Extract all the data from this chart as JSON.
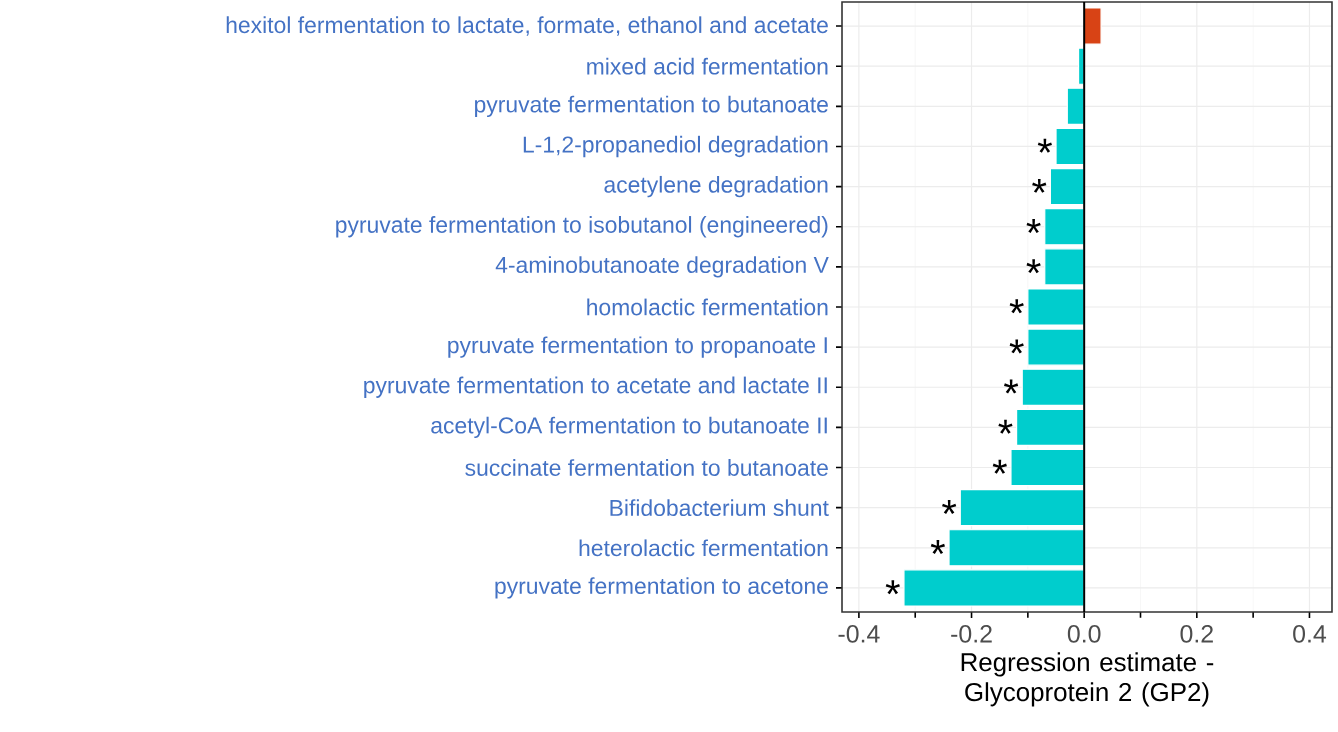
{
  "chart_data": {
    "type": "bar",
    "orientation": "horizontal",
    "xlabel": "Regression estimate - Glycoprotein 2 (GP2)",
    "categories": [
      "hexitol fermentation to lactate, formate, ethanol and acetate",
      "mixed acid fermentation",
      "pyruvate fermentation to butanoate",
      "L-1,2-propanediol degradation",
      "acetylene degradation",
      "pyruvate fermentation to isobutanol (engineered)",
      "4-aminobutanoate degradation V",
      "homolactic fermentation",
      "pyruvate fermentation to propanoate I",
      "pyruvate fermentation to acetate and lactate II",
      "acetyl-CoA fermentation to butanoate II",
      "succinate fermentation to butanoate",
      "Bifidobacterium shunt",
      "heterolactic fermentation",
      "pyruvate fermentation to acetone"
    ],
    "values": [
      0.03,
      -0.01,
      -0.03,
      -0.05,
      -0.06,
      -0.07,
      -0.07,
      -0.1,
      -0.1,
      -0.11,
      -0.12,
      -0.13,
      -0.22,
      -0.24,
      -0.32
    ],
    "colors": [
      "#d84315",
      "#00cdcd",
      "#00cdcd",
      "#00cdcd",
      "#00cdcd",
      "#00cdcd",
      "#00cdcd",
      "#00cdcd",
      "#00cdcd",
      "#00cdcd",
      "#00cdcd",
      "#00cdcd",
      "#00cdcd",
      "#00cdcd",
      "#00cdcd"
    ],
    "xlim": [
      -0.43,
      0.44
    ],
    "xticks": [
      -0.4,
      -0.2,
      {
        "value": 0,
        "label": "0.0"
      },
      0.2,
      0.4
    ],
    "grid": true,
    "ref_lines": [
      {
        "axis": "x",
        "value": 0,
        "color": "#000000"
      }
    ],
    "annotations": [
      {
        "text": "*",
        "x": -0.05,
        "y": "L-1,2-propanediol degradation"
      },
      {
        "text": "*",
        "x": -0.06,
        "y": "acetylene degradation"
      },
      {
        "text": "*",
        "x": -0.07,
        "y": "pyruvate fermentation to isobutanol (engineered)"
      },
      {
        "text": "*",
        "x": -0.07,
        "y": "4-aminobutanoate degradation V"
      },
      {
        "text": "*",
        "x": -0.1,
        "y": "homolactic fermentation"
      },
      {
        "text": "*",
        "x": -0.1,
        "y": "pyruvate fermentation to propanoate I"
      },
      {
        "text": "*",
        "x": -0.11,
        "y": "pyruvate fermentation to acetate and lactate II"
      },
      {
        "text": "*",
        "x": -0.12,
        "y": "acetyl-CoA fermentation to butanoate II"
      },
      {
        "text": "*",
        "x": -0.13,
        "y": "succinate fermentation to butanoate"
      },
      {
        "text": "*",
        "x": -0.22,
        "y": "Bifidobacterium shunt"
      },
      {
        "text": "*",
        "x": -0.24,
        "y": "heterolactic fermentation"
      },
      {
        "text": "*",
        "x": -0.32,
        "y": "pyruvate fermentation to acetone"
      }
    ]
  }
}
